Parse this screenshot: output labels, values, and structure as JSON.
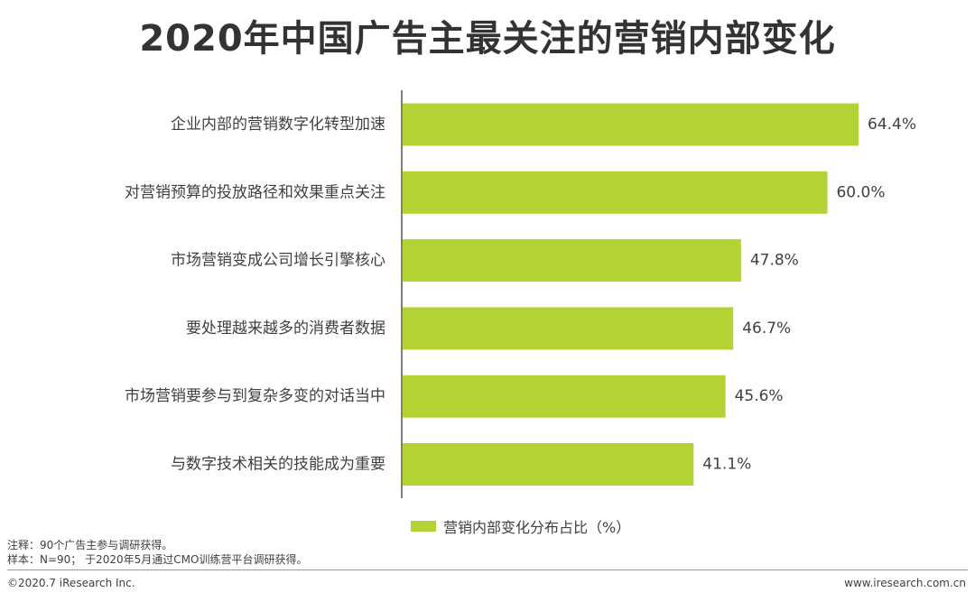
{
  "title": "2020年中国广告主最关注的营销内部变化",
  "chart_data": {
    "type": "bar",
    "orientation": "horizontal",
    "categories": [
      "企业内部的营销数字化转型加速",
      "对营销预算的投放路径和效果重点关注",
      "市场营销变成公司增长引擎核心",
      "要处理越来越多的消费者数据",
      "市场营销要参与到复杂多变的对话当中",
      "与数字技术相关的技能成为重要"
    ],
    "values": [
      64.4,
      60.0,
      47.8,
      46.7,
      45.6,
      41.1
    ],
    "value_labels": [
      "64.4%",
      "60.0%",
      "47.8%",
      "46.7%",
      "45.6%",
      "41.1%"
    ],
    "series": [
      {
        "name": "营销内部变化分布占比（%）",
        "values": [
          64.4,
          60.0,
          47.8,
          46.7,
          45.6,
          41.1
        ]
      }
    ],
    "color": "#b3d334",
    "grid": false,
    "legend_position": "bottom"
  },
  "legend": {
    "label": "营销内部变化分布占比（%）",
    "color": "#b3d334"
  },
  "notes": {
    "line1": "注释：90个广告主参与调研获得。",
    "line2": "样本：N=90； 于2020年5月通过CMO训练营平台调研获得。"
  },
  "footer": {
    "copyright": "©2020.7 iResearch Inc.",
    "website": "www.iresearch.com.cn"
  }
}
